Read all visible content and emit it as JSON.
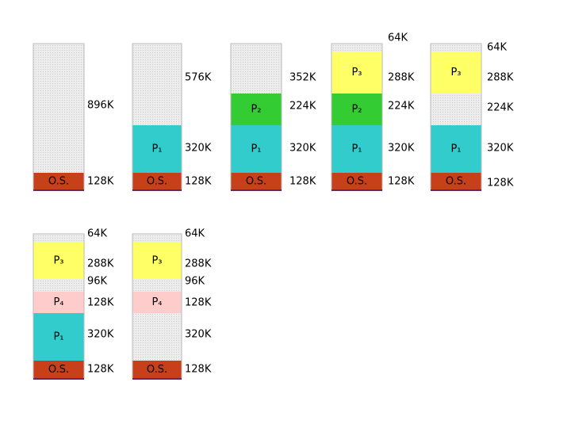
{
  "diagrams": [
    {
      "blocks": [
        {
          "size": "896K"
        },
        {
          "label": "O.S.",
          "size": "128K"
        }
      ]
    },
    {
      "blocks": [
        {
          "size": "576K"
        },
        {
          "label": "P₁",
          "size": "320K"
        },
        {
          "label": "O.S.",
          "size": "128K"
        }
      ]
    },
    {
      "blocks": [
        {
          "size": "352K"
        },
        {
          "label": "P₂",
          "size": "224K"
        },
        {
          "label": "P₁",
          "size": "320K"
        },
        {
          "label": "O.S.",
          "size": "128K"
        }
      ]
    },
    {
      "blocks": [
        {
          "size": "64K"
        },
        {
          "label": "P₃",
          "size": "288K"
        },
        {
          "label": "P₂",
          "size": "224K"
        },
        {
          "label": "P₁",
          "size": "320K"
        },
        {
          "label": "O.S.",
          "size": "128K"
        }
      ]
    },
    {
      "blocks": [
        {
          "size": "64K"
        },
        {
          "label": "P₃",
          "size": "288K"
        },
        {
          "size": "224K"
        },
        {
          "label": "P₁",
          "size": "320K"
        },
        {
          "label": "O.S.",
          "size": "128K"
        }
      ]
    },
    {
      "blocks": [
        {
          "size": "64K"
        },
        {
          "label": "P₃",
          "size": "288K"
        },
        {
          "size": "96K"
        },
        {
          "label": "P₄",
          "size": "128K"
        },
        {
          "label": "P₁",
          "size": "320K"
        },
        {
          "label": "O.S.",
          "size": "128K"
        }
      ]
    },
    {
      "blocks": [
        {
          "size": "64K"
        },
        {
          "label": "P₃",
          "size": "288K"
        },
        {
          "size": "96K"
        },
        {
          "label": "P₄",
          "size": "128K"
        },
        {
          "size": "320K"
        },
        {
          "label": "O.S.",
          "size": "128K"
        }
      ]
    }
  ]
}
